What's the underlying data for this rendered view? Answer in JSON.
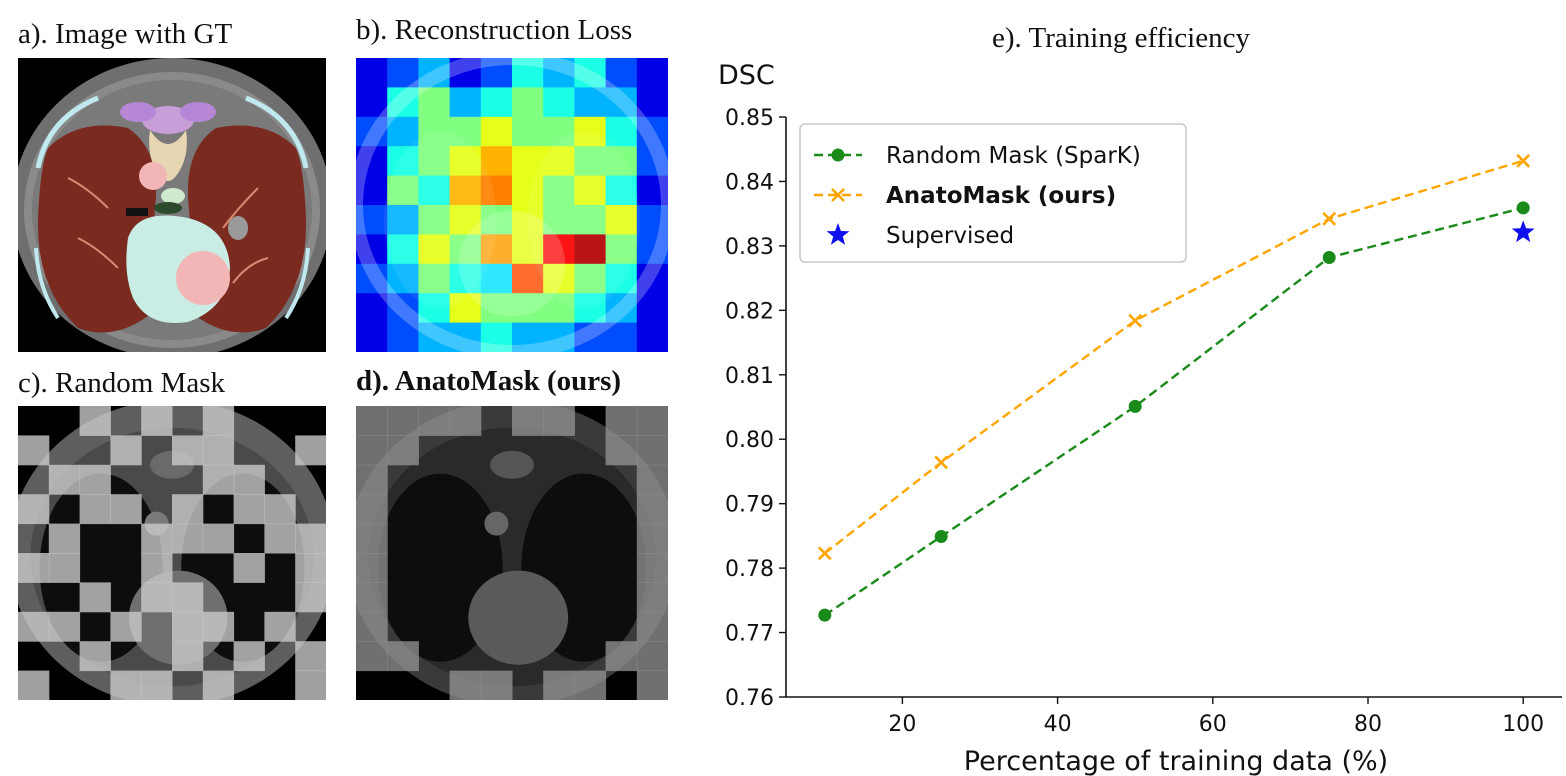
{
  "panels": {
    "a_title": "a). Image with GT",
    "b_title": "b). Reconstruction Loss",
    "c_title": "c). Random Mask",
    "d_title": "d). AnatoMask (ours)"
  },
  "chart_data": {
    "type": "line",
    "title": "e). Training efficiency",
    "xlabel": "Percentage of training data (%)",
    "ylabel": "DSC",
    "xlim": [
      5,
      105
    ],
    "ylim": [
      0.76,
      0.85
    ],
    "xticks": [
      20,
      40,
      60,
      80,
      100
    ],
    "yticks": [
      0.76,
      0.77,
      0.78,
      0.79,
      0.8,
      0.81,
      0.82,
      0.83,
      0.84,
      0.85
    ],
    "ytick_labels": [
      "0.76",
      "0.77",
      "0.78",
      "0.79",
      "0.80",
      "0.81",
      "0.82",
      "0.83",
      "0.84",
      "0.85"
    ],
    "xtick_labels": [
      "20",
      "40",
      "60",
      "80",
      "100"
    ],
    "legend_position": "upper-left",
    "series": [
      {
        "name": "Random Mask (SparK)",
        "color": "#1a8a1a",
        "marker": "circle",
        "linestyle": "dashed",
        "bold": false,
        "x": [
          10,
          25,
          50,
          75,
          100
        ],
        "y": [
          0.7727,
          0.7849,
          0.8051,
          0.8282,
          0.8359
        ]
      },
      {
        "name": "AnatoMask (ours)",
        "color": "#ffa500",
        "marker": "x",
        "linestyle": "dashed",
        "bold": true,
        "x": [
          10,
          25,
          50,
          75,
          100
        ],
        "y": [
          0.7823,
          0.7964,
          0.8184,
          0.8342,
          0.8432
        ]
      },
      {
        "name": "Supervised",
        "color": "#1010ee",
        "marker": "star",
        "linestyle": "none",
        "bold": false,
        "x": [
          100
        ],
        "y": [
          0.8321
        ]
      }
    ]
  }
}
